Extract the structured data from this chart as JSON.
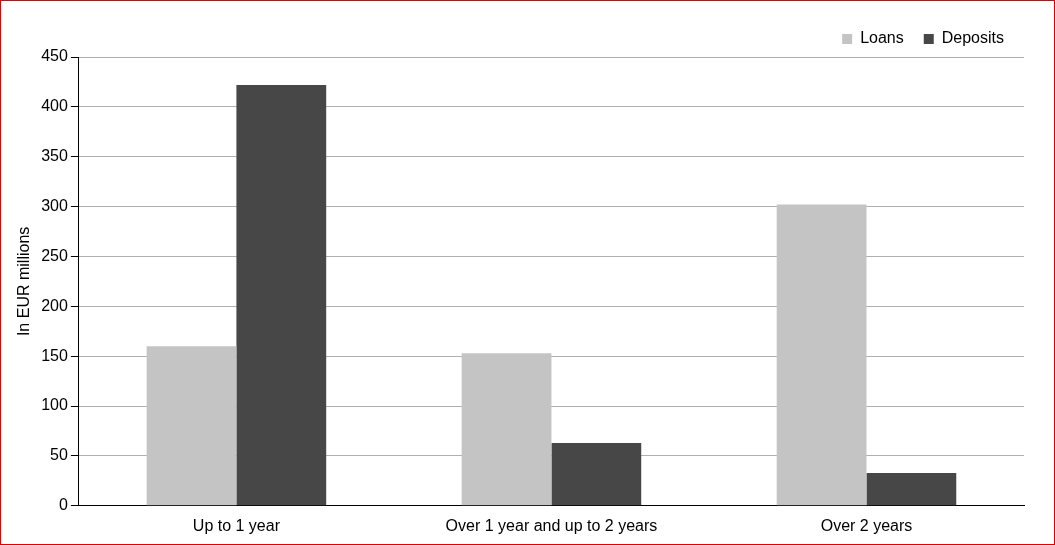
{
  "chart_data": {
    "type": "bar",
    "ylabel": "In EUR millions",
    "categories": [
      "Up to 1 year",
      "Over 1 year and up to 2 years",
      "Over 2 years"
    ],
    "series": [
      {
        "name": "Loans",
        "color": "#c4c4c4",
        "values": [
          160,
          153,
          302
        ]
      },
      {
        "name": "Deposits",
        "color": "#474747",
        "values": [
          422,
          63,
          33
        ]
      }
    ],
    "ylim": [
      0,
      450
    ],
    "yticks": [
      0,
      50,
      100,
      150,
      200,
      250,
      300,
      350,
      400,
      450
    ],
    "grid": "y",
    "legend": "top right"
  }
}
